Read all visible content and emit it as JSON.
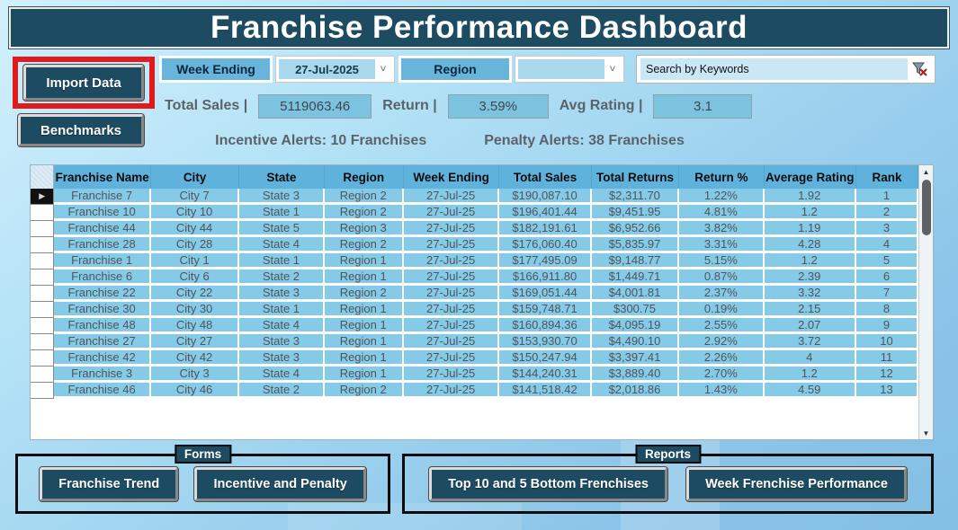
{
  "title": "Franchise Performance Dashboard",
  "toolbar": {
    "import_button": "Import Data",
    "benchmarks_button": "Benchmarks",
    "week_ending_label": "Week Ending",
    "week_ending_value": "27-Jul-2025",
    "region_label": "Region",
    "region_value": "",
    "search_placeholder": "Search by Keywords",
    "chevron_icon": "chevron-down",
    "clear_filter_icon": "funnel-with-red-x"
  },
  "stats": {
    "total_sales_label": "Total Sales |",
    "total_sales_value": "5119063.46",
    "return_label": "Return |",
    "return_value": "3.59%",
    "avg_rating_label": "Avg Rating |",
    "avg_rating_value": "3.1"
  },
  "alerts": {
    "incentive": "Incentive Alerts: 10 Franchises",
    "penalty": "Penalty Alerts: 38 Franchises"
  },
  "table": {
    "columns": [
      "Franchise Name",
      "City",
      "State",
      "Region",
      "Week Ending",
      "Total Sales",
      "Total Returns",
      "Return %",
      "Average Rating",
      "Rank"
    ],
    "current_row_index": 0,
    "current_row_marker": "▶",
    "rows": [
      [
        "Franchise 7",
        "City 7",
        "State 3",
        "Region 2",
        "27-Jul-25",
        "$190,087.10",
        "$2,311.70",
        "1.22%",
        "1.92",
        "1"
      ],
      [
        "Franchise 10",
        "City 10",
        "State 1",
        "Region 2",
        "27-Jul-25",
        "$196,401.44",
        "$9,451.95",
        "4.81%",
        "1.2",
        "2"
      ],
      [
        "Franchise 44",
        "City 44",
        "State 5",
        "Region 3",
        "27-Jul-25",
        "$182,191.61",
        "$6,952.66",
        "3.82%",
        "1.19",
        "3"
      ],
      [
        "Franchise 28",
        "City 28",
        "State 4",
        "Region 2",
        "27-Jul-25",
        "$176,060.40",
        "$5,835.97",
        "3.31%",
        "4.28",
        "4"
      ],
      [
        "Franchise 1",
        "City 1",
        "State 1",
        "Region 1",
        "27-Jul-25",
        "$177,495.09",
        "$9,148.77",
        "5.15%",
        "1.2",
        "5"
      ],
      [
        "Franchise 6",
        "City 6",
        "State 2",
        "Region 1",
        "27-Jul-25",
        "$166,911.80",
        "$1,449.71",
        "0.87%",
        "2.39",
        "6"
      ],
      [
        "Franchise 22",
        "City 22",
        "State 3",
        "Region 2",
        "27-Jul-25",
        "$169,051.44",
        "$4,001.81",
        "2.37%",
        "3.32",
        "7"
      ],
      [
        "Franchise 30",
        "City 30",
        "State 1",
        "Region 1",
        "27-Jul-25",
        "$159,748.71",
        "$300.75",
        "0.19%",
        "2.15",
        "8"
      ],
      [
        "Franchise 48",
        "City 48",
        "State 4",
        "Region 1",
        "27-Jul-25",
        "$160,894.36",
        "$4,095.19",
        "2.55%",
        "2.07",
        "9"
      ],
      [
        "Franchise 27",
        "City 27",
        "State 3",
        "Region 1",
        "27-Jul-25",
        "$153,930.70",
        "$4,490.10",
        "2.92%",
        "3.72",
        "10"
      ],
      [
        "Franchise 42",
        "City 42",
        "State 3",
        "Region 1",
        "27-Jul-25",
        "$150,247.94",
        "$3,397.41",
        "2.26%",
        "4",
        "11"
      ],
      [
        "Franchise 3",
        "City 3",
        "State 4",
        "Region 1",
        "27-Jul-25",
        "$144,240.31",
        "$3,889.40",
        "2.70%",
        "1.2",
        "12"
      ],
      [
        "Franchise 46",
        "City 46",
        "State 2",
        "Region 2",
        "27-Jul-25",
        "$141,518.42",
        "$2,018.86",
        "1.43%",
        "4.59",
        "13"
      ]
    ]
  },
  "groups": {
    "forms": {
      "label": "Forms",
      "buttons": {
        "franchise_trend": "Franchise Trend",
        "incentive_penalty": "Incentive and Penalty"
      }
    },
    "reports": {
      "label": "Reports",
      "buttons": {
        "top_bottom": "Top 10 and 5 Bottom Frenchises",
        "week_performance": "Week Frenchise Performance"
      }
    }
  },
  "colors": {
    "teal": "#1d4b61",
    "chip_blue": "#68b4da",
    "combo_blue": "#a9d7ec",
    "valbox_blue": "#7cc3e0",
    "header_blue": "#5fb2dc",
    "row_blue": "#85cae6",
    "red": "#e11b1b"
  }
}
